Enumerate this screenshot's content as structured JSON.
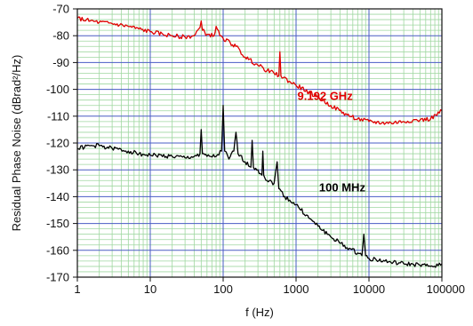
{
  "chart_data": {
    "type": "line",
    "xlabel": "f (Hz)",
    "ylabel": "Residual Phase Noise (dBrad²/Hz)",
    "x_scale": "log",
    "xlim": [
      1,
      100000
    ],
    "ylim": [
      -170,
      -70
    ],
    "x_ticks": [
      1,
      10,
      100,
      1000,
      10000,
      100000
    ],
    "x_tick_labels": [
      "1",
      "10",
      "100",
      "1000",
      "10000",
      "100000"
    ],
    "y_ticks": [
      -70,
      -80,
      -90,
      -100,
      -110,
      -120,
      -130,
      -140,
      -150,
      -160,
      -170
    ],
    "y_tick_labels": [
      "-70",
      "-80",
      "-90",
      "-100",
      "-110",
      "-120",
      "-130",
      "-140",
      "-150",
      "-160",
      "-170"
    ],
    "grid": true,
    "major_grid_color": "#4a5cc4",
    "minor_grid_color": "#9fd7a0",
    "series": [
      {
        "name": "9.192 GHz",
        "color": "#e00000",
        "label_at": [
          2500,
          -104
        ],
        "points": [
          [
            1,
            -73.5
          ],
          [
            1.5,
            -74.5
          ],
          [
            2,
            -75
          ],
          [
            3,
            -75.5
          ],
          [
            5,
            -76.5
          ],
          [
            7,
            -77.5
          ],
          [
            10,
            -78.5
          ],
          [
            15,
            -79.5
          ],
          [
            20,
            -80
          ],
          [
            30,
            -80.5
          ],
          [
            40,
            -80
          ],
          [
            48,
            -77
          ],
          [
            50,
            -74.5
          ],
          [
            52,
            -78
          ],
          [
            60,
            -79.5
          ],
          [
            75,
            -80
          ],
          [
            80,
            -76.5
          ],
          [
            90,
            -80
          ],
          [
            100,
            -81
          ],
          [
            150,
            -84
          ],
          [
            200,
            -88
          ],
          [
            300,
            -91
          ],
          [
            400,
            -93
          ],
          [
            500,
            -94
          ],
          [
            580,
            -95
          ],
          [
            600,
            -86
          ],
          [
            620,
            -95
          ],
          [
            800,
            -97
          ],
          [
            1000,
            -98.5
          ],
          [
            1500,
            -101
          ],
          [
            2000,
            -103
          ],
          [
            3000,
            -106
          ],
          [
            5000,
            -109.5
          ],
          [
            7000,
            -111
          ],
          [
            10000,
            -112
          ],
          [
            15000,
            -112.5
          ],
          [
            20000,
            -112.5
          ],
          [
            30000,
            -112
          ],
          [
            40000,
            -111.5
          ],
          [
            50000,
            -111.5
          ],
          [
            70000,
            -111
          ],
          [
            100000,
            -108
          ]
        ]
      },
      {
        "name": "100 MHz",
        "color": "#000000",
        "label_at": [
          4300,
          -138
        ],
        "points": [
          [
            1,
            -122
          ],
          [
            1.5,
            -121
          ],
          [
            2,
            -121
          ],
          [
            3,
            -122
          ],
          [
            5,
            -123
          ],
          [
            7,
            -124
          ],
          [
            10,
            -124.5
          ],
          [
            20,
            -125
          ],
          [
            30,
            -125.5
          ],
          [
            40,
            -125
          ],
          [
            48,
            -124
          ],
          [
            50,
            -115
          ],
          [
            52,
            -124
          ],
          [
            60,
            -125
          ],
          [
            80,
            -125
          ],
          [
            95,
            -123
          ],
          [
            100,
            -106
          ],
          [
            105,
            -123
          ],
          [
            120,
            -126
          ],
          [
            140,
            -123
          ],
          [
            150,
            -116
          ],
          [
            160,
            -124
          ],
          [
            200,
            -127
          ],
          [
            240,
            -129
          ],
          [
            250,
            -119
          ],
          [
            260,
            -129
          ],
          [
            300,
            -130
          ],
          [
            340,
            -132
          ],
          [
            350,
            -123
          ],
          [
            360,
            -132
          ],
          [
            400,
            -134
          ],
          [
            500,
            -135
          ],
          [
            550,
            -127
          ],
          [
            580,
            -137
          ],
          [
            700,
            -140
          ],
          [
            1000,
            -143
          ],
          [
            1500,
            -148
          ],
          [
            2000,
            -151
          ],
          [
            3000,
            -155
          ],
          [
            5000,
            -159
          ],
          [
            7000,
            -161
          ],
          [
            8000,
            -162
          ],
          [
            8500,
            -154
          ],
          [
            9000,
            -162
          ],
          [
            10000,
            -163
          ],
          [
            20000,
            -164.5
          ],
          [
            30000,
            -165
          ],
          [
            50000,
            -165.5
          ],
          [
            70000,
            -166
          ],
          [
            100000,
            -165
          ]
        ]
      }
    ]
  }
}
